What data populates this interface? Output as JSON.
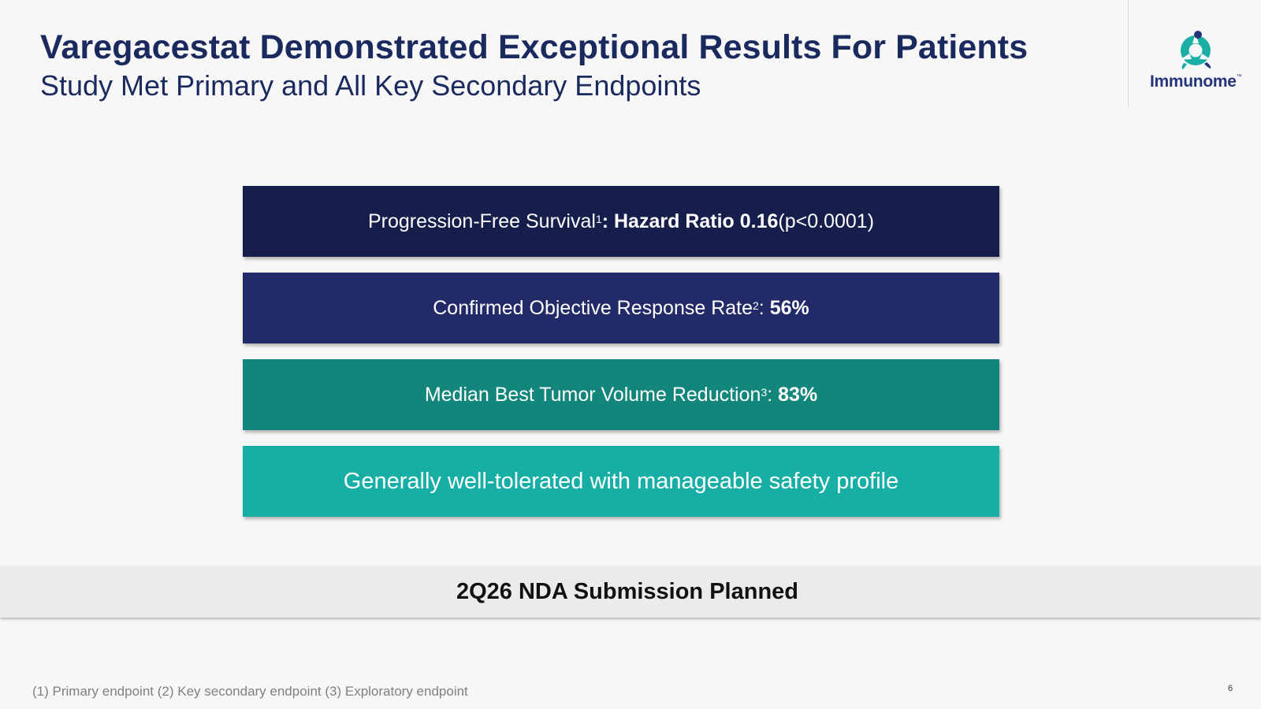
{
  "header": {
    "title": "Varegacestat Demonstrated Exceptional Results For Patients",
    "subtitle": "Study Met Primary and All Key Secondary Endpoints"
  },
  "logo": {
    "name": "Immunome",
    "tm": "™",
    "icon": "immunome-logo-icon",
    "colors": {
      "mark": "#1aaea5",
      "text": "#24337a"
    }
  },
  "results": [
    {
      "color": "#161e4b",
      "label": "Progression-Free Survival",
      "sup": "1",
      "bold": ": Hazard Ratio 0.16",
      "suffix": " (p<0.0001)"
    },
    {
      "color": "#222a68",
      "label": "Confirmed Objective Response Rate",
      "sup": "2",
      "sep": ": ",
      "bold": "56%"
    },
    {
      "color": "#13867c",
      "label": "Median Best Tumor Volume Reduction",
      "sup": "3",
      "sep": ": ",
      "bold": "83%"
    },
    {
      "color": "#17afa5",
      "label": "Generally well-tolerated with manageable safety profile"
    }
  ],
  "banner": {
    "text": "2Q26 NDA Submission Planned"
  },
  "footer": {
    "footnote": "(1) Primary endpoint (2) Key secondary endpoint (3) Exploratory endpoint",
    "page_number": "6"
  }
}
